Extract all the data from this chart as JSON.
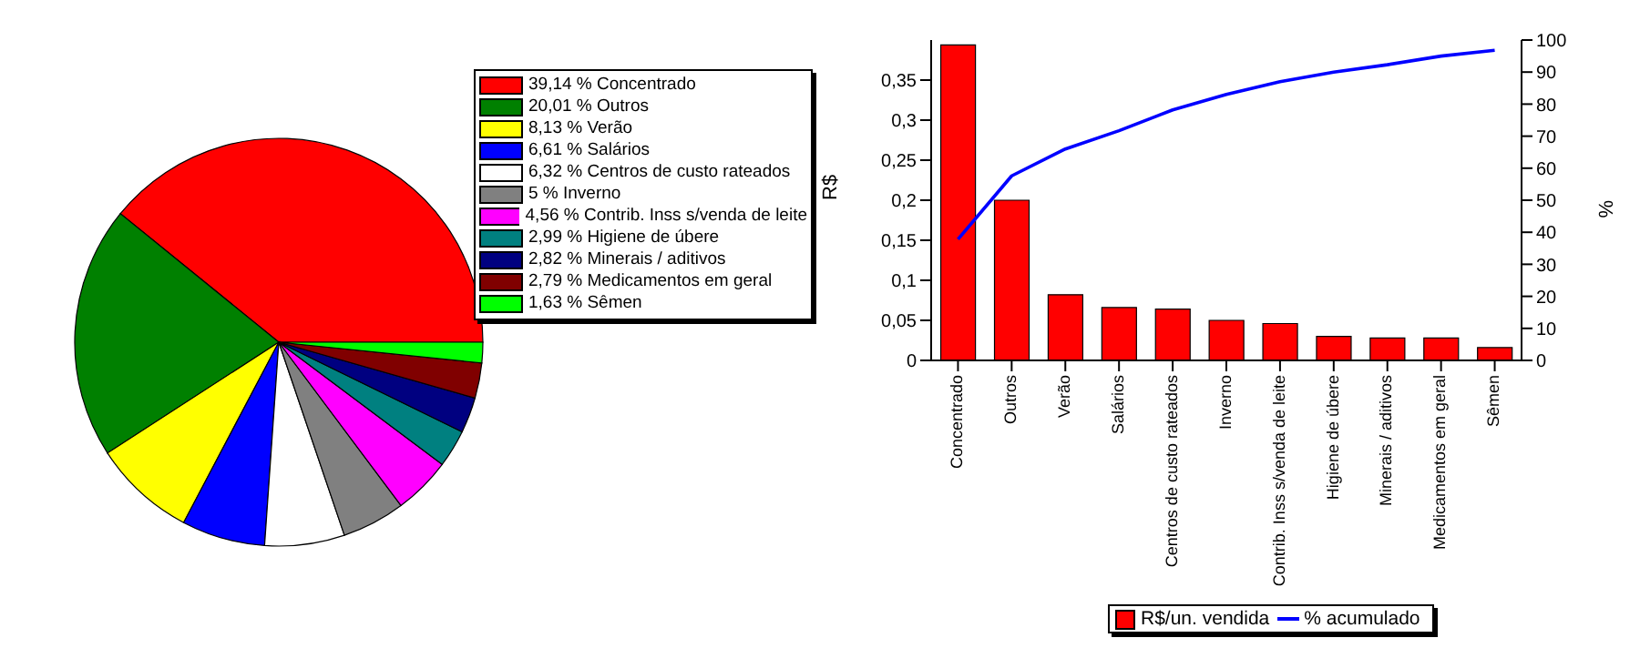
{
  "chart_data": [
    {
      "type": "pie",
      "categories": [
        "Concentrado",
        "Outros",
        "Verão",
        "Salários",
        "Centros de custo rateados",
        "Inverno",
        "Contrib. Inss s/venda de leite",
        "Higiene de úbere",
        "Minerais / aditivos",
        "Medicamentos em geral",
        "Sêmen"
      ],
      "values": [
        39.14,
        20.01,
        8.13,
        6.61,
        6.32,
        5,
        4.56,
        2.99,
        2.82,
        2.79,
        1.63
      ],
      "colors": [
        "#ff0000",
        "#008000",
        "#ffff00",
        "#0000ff",
        "#ffffff",
        "#808080",
        "#ff00ff",
        "#008080",
        "#000080",
        "#800000",
        "#00ff00"
      ],
      "value_labels": [
        "39,14 %",
        "20,01 %",
        "8,13 %",
        "6,61 %",
        "6,32 %",
        "5 %",
        "4,56 %",
        "2,99 %",
        "2,82 %",
        "2,79 %",
        "1,63 %"
      ],
      "legend": "right"
    },
    {
      "type": "bar",
      "categories": [
        "Concentrado",
        "Outros",
        "Verão",
        "Salários",
        "Centros de custo rateados",
        "Inverno",
        "Contrib. Inss s/venda de leite",
        "Higiene de úbere",
        "Minerais / aditivos",
        "Medicamentos em geral",
        "Sêmen"
      ],
      "series": [
        {
          "name": "R$/un. vendida",
          "type": "bar",
          "color": "#ff0000",
          "values": [
            0.394,
            0.2,
            0.082,
            0.066,
            0.064,
            0.05,
            0.046,
            0.03,
            0.028,
            0.028,
            0.016
          ]
        },
        {
          "name": "% acumulado",
          "type": "line",
          "axis": "y2",
          "color": "#0000ff",
          "values": [
            37.8,
            57.6,
            66,
            71.7,
            78.2,
            83,
            87,
            90,
            92.3,
            95,
            96.8
          ]
        }
      ],
      "ylabel": "R$",
      "y2label": "%",
      "ylim": [
        0,
        0.4
      ],
      "yticks": [
        0,
        {
          "value": 0.05,
          "label": "0,05"
        },
        {
          "value": 0.1,
          "label": "0,1"
        },
        {
          "value": 0.15,
          "label": "0,15"
        },
        {
          "value": 0.2,
          "label": "0,2"
        },
        {
          "value": 0.25,
          "label": "0,25"
        },
        {
          "value": 0.3,
          "label": "0,3"
        },
        {
          "value": 0.35,
          "label": "0,35"
        }
      ],
      "y2lim": [
        0,
        100
      ],
      "y2ticks": [
        0,
        10,
        20,
        30,
        40,
        50,
        60,
        70,
        80,
        90,
        100
      ],
      "marker": "none",
      "legend": "bottom",
      "grid": false
    }
  ]
}
